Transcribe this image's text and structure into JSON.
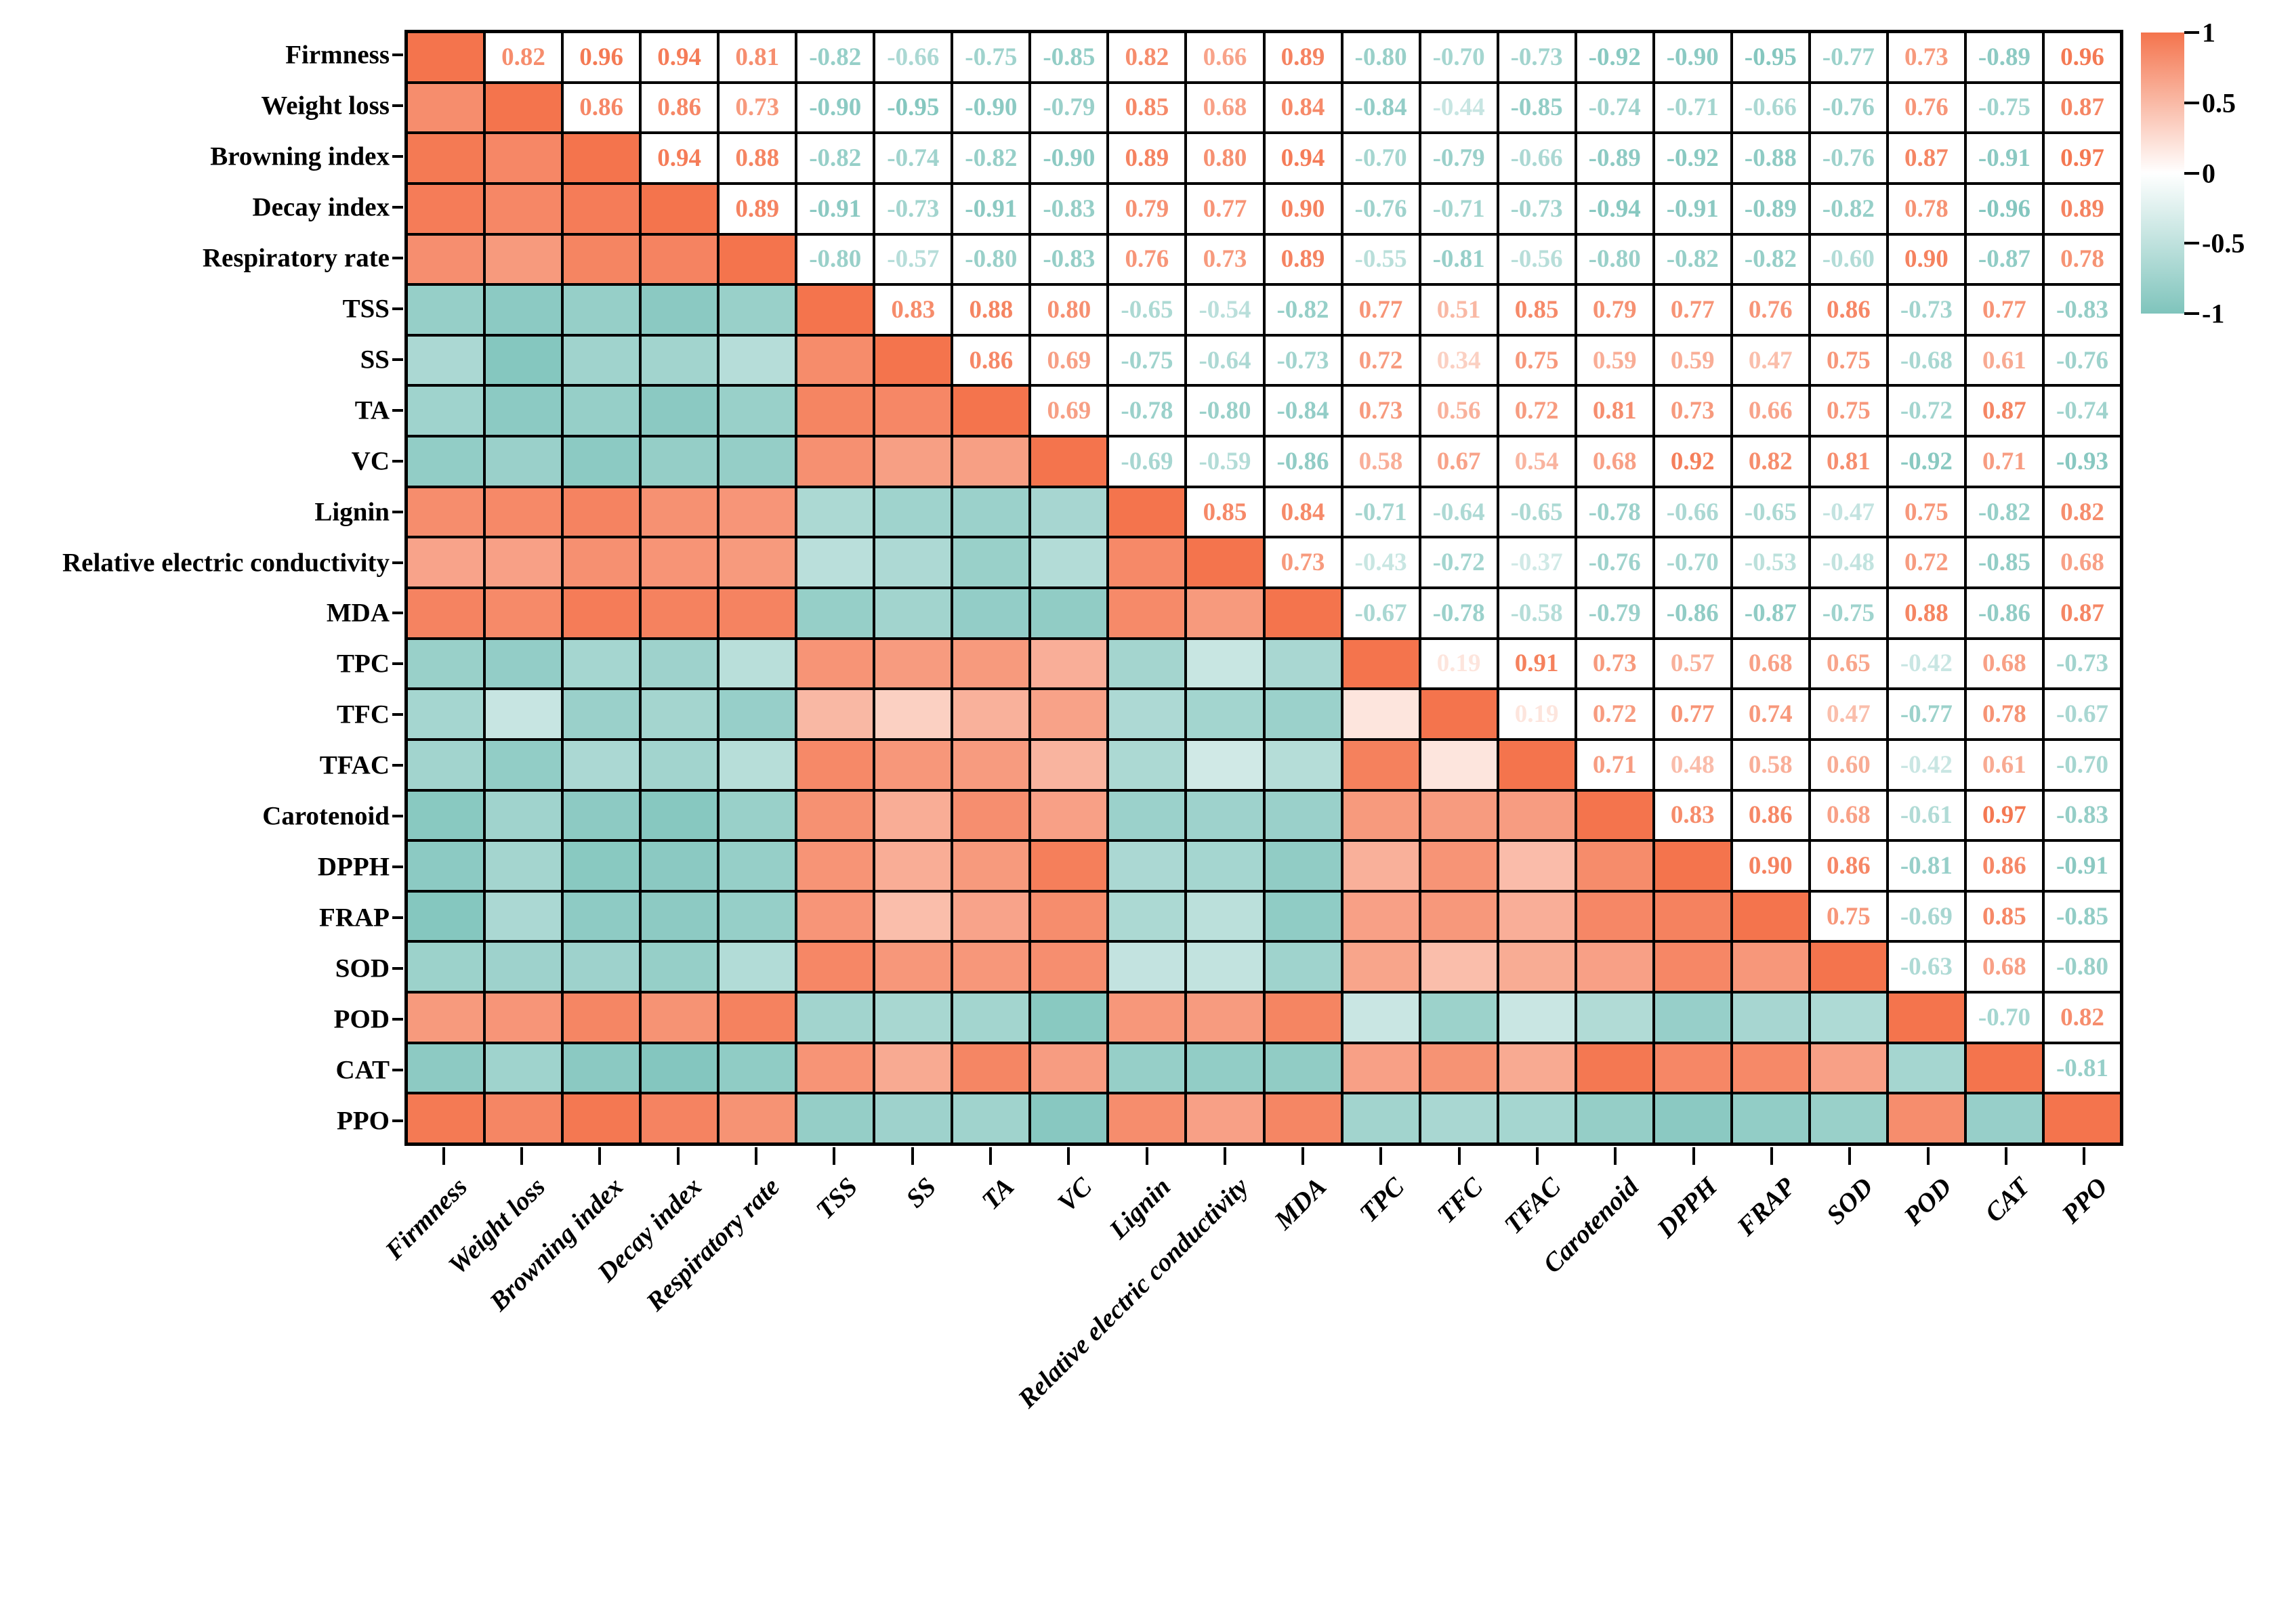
{
  "chart_data": {
    "type": "heatmap",
    "subtype": "correlation-matrix",
    "labels": [
      "Firmness",
      "Weight loss",
      "Browning index",
      "Decay index",
      "Respiratory rate",
      "TSS",
      "SS",
      "TA",
      "VC",
      "Lignin",
      "Relative electric conductivity",
      "MDA",
      "TPC",
      "TFC",
      "TFAC",
      "Carotenoid",
      "DPPH",
      "FRAP",
      "SOD",
      "POD",
      "CAT",
      "PPO"
    ],
    "upper_triangle": [
      [
        "0.82",
        "0.96",
        "0.94",
        "0.81",
        "-0.82",
        "-0.66",
        "-0.75",
        "-0.85",
        "0.82",
        "0.66",
        "0.89",
        "-0.80",
        "-0.70",
        "-0.73",
        "-0.92",
        "-0.90",
        "-0.95",
        "-0.77",
        "0.73",
        "-0.89",
        "0.96"
      ],
      [
        "0.86",
        "0.86",
        "0.73",
        "-0.90",
        "-0.95",
        "-0.90",
        "-0.79",
        "0.85",
        "0.68",
        "0.84",
        "-0.84",
        "-0.44",
        "-0.85",
        "-0.74",
        "-0.71",
        "-0.66",
        "-0.76",
        "0.76",
        "-0.75",
        "0.87"
      ],
      [
        "0.94",
        "0.88",
        "-0.82",
        "-0.74",
        "-0.82",
        "-0.90",
        "0.89",
        "0.80",
        "0.94",
        "-0.70",
        "-0.79",
        "-0.66",
        "-0.89",
        "-0.92",
        "-0.88",
        "-0.76",
        "0.87",
        "-0.91",
        "0.97"
      ],
      [
        "0.89",
        "-0.91",
        "-0.73",
        "-0.91",
        "-0.83",
        "0.79",
        "0.77",
        "0.90",
        "-0.76",
        "-0.71",
        "-0.73",
        "-0.94",
        "-0.91",
        "-0.89",
        "-0.82",
        "0.78",
        "-0.96",
        "0.89"
      ],
      [
        "-0.80",
        "-0.57",
        "-0.80",
        "-0.83",
        "0.76",
        "0.73",
        "0.89",
        "-0.55",
        "-0.81",
        "-0.56",
        "-0.80",
        "-0.82",
        "-0.82",
        "-0.60",
        "0.90",
        "-0.87",
        "0.78"
      ],
      [
        "0.83",
        "0.88",
        "0.80",
        "-0.65",
        "-0.54",
        "-0.82",
        "0.77",
        "0.51",
        "0.85",
        "0.79",
        "0.77",
        "0.76",
        "0.86",
        "-0.73",
        "0.77",
        "-0.83"
      ],
      [
        "0.86",
        "0.69",
        "-0.75",
        "-0.64",
        "-0.73",
        "0.72",
        "0.34",
        "0.75",
        "0.59",
        "0.59",
        "0.47",
        "0.75",
        "-0.68",
        "0.61",
        "-0.76"
      ],
      [
        "0.69",
        "-0.78",
        "-0.80",
        "-0.84",
        "0.73",
        "0.56",
        "0.72",
        "0.81",
        "0.73",
        "0.66",
        "0.75",
        "-0.72",
        "0.87",
        "-0.74"
      ],
      [
        "-0.69",
        "-0.59",
        "-0.86",
        "0.58",
        "0.67",
        "0.54",
        "0.68",
        "0.92",
        "0.82",
        "0.81",
        "-0.92",
        "0.71",
        "-0.93"
      ],
      [
        "0.85",
        "0.84",
        "-0.71",
        "-0.64",
        "-0.65",
        "-0.78",
        "-0.66",
        "-0.65",
        "-0.47",
        "0.75",
        "-0.82",
        "0.82"
      ],
      [
        "0.73",
        "-0.43",
        "-0.72",
        "-0.37",
        "-0.76",
        "-0.70",
        "-0.53",
        "-0.48",
        "0.72",
        "-0.85",
        "0.68"
      ],
      [
        "-0.67",
        "-0.78",
        "-0.58",
        "-0.79",
        "-0.86",
        "-0.87",
        "-0.75",
        "0.88",
        "-0.86",
        "0.87"
      ],
      [
        "0.19",
        "0.91",
        "0.73",
        "0.57",
        "0.68",
        "0.65",
        "-0.42",
        "0.68",
        "-0.73"
      ],
      [
        "0.19",
        "0.72",
        "0.77",
        "0.74",
        "0.47",
        "-0.77",
        "0.78",
        "-0.67"
      ],
      [
        "0.71",
        "0.48",
        "0.58",
        "0.60",
        "-0.42",
        "0.61",
        "-0.70"
      ],
      [
        "0.83",
        "0.86",
        "0.68",
        "-0.61",
        "0.97",
        "-0.83"
      ],
      [
        "0.90",
        "0.86",
        "-0.81",
        "0.86",
        "-0.91"
      ],
      [
        "0.75",
        "-0.69",
        "0.85",
        "-0.85"
      ],
      [
        "-0.63",
        "0.68",
        "-0.80"
      ],
      [
        "-0.70",
        "0.82"
      ],
      [
        "-0.81"
      ]
    ],
    "diagonal_value": 1,
    "colors": {
      "positive_max": "#F4744D",
      "negative_max": "#7FC4BC",
      "zero": "#FFFFFF",
      "grid_line": "#000000",
      "background": "#FFFFFF"
    },
    "colorbar": {
      "max": 1,
      "min": -1,
      "tick_labels": [
        "1",
        "0.5",
        "0",
        "-0.5",
        "-1"
      ],
      "tick_values": [
        1,
        0.5,
        0,
        -0.5,
        -1
      ],
      "position": "right"
    },
    "legend_position": "right",
    "grid": true
  }
}
